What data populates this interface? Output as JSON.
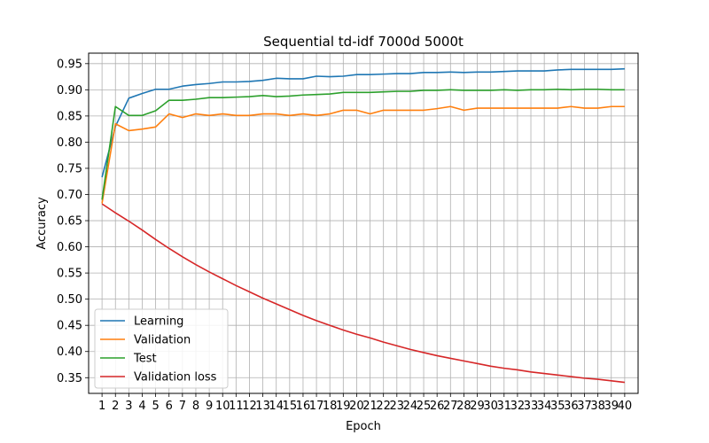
{
  "chart_data": {
    "type": "line",
    "title": "Sequential td-idf 7000d 5000t",
    "xlabel": "Epoch",
    "ylabel": "Accuracy",
    "x": [
      1,
      2,
      3,
      4,
      5,
      6,
      7,
      8,
      9,
      10,
      11,
      12,
      13,
      14,
      15,
      16,
      17,
      18,
      19,
      20,
      21,
      22,
      23,
      24,
      25,
      26,
      27,
      28,
      29,
      30,
      31,
      32,
      33,
      34,
      35,
      36,
      37,
      38,
      39,
      40
    ],
    "xticks": [
      "1",
      "2",
      "3",
      "4",
      "5",
      "6",
      "7",
      "8",
      "9",
      "10",
      "11",
      "12",
      "13",
      "14",
      "15",
      "16",
      "17",
      "18",
      "19",
      "20",
      "21",
      "22",
      "23",
      "24",
      "25",
      "26",
      "27",
      "28",
      "29",
      "30",
      "31",
      "32",
      "33",
      "34",
      "35",
      "36",
      "37",
      "38",
      "39",
      "40"
    ],
    "yticks": [
      "0.35",
      "0.40",
      "0.45",
      "0.50",
      "0.55",
      "0.60",
      "0.65",
      "0.70",
      "0.75",
      "0.80",
      "0.85",
      "0.90",
      "0.95"
    ],
    "ylim": [
      0.32,
      0.97
    ],
    "xlim": [
      0,
      41
    ],
    "grid": true,
    "legend_position": "lower-left",
    "series": [
      {
        "name": "Learning",
        "color": "#1f77b4",
        "values": [
          0.733,
          0.83,
          0.884,
          0.893,
          0.901,
          0.901,
          0.907,
          0.91,
          0.912,
          0.915,
          0.915,
          0.916,
          0.918,
          0.922,
          0.921,
          0.921,
          0.926,
          0.925,
          0.926,
          0.929,
          0.929,
          0.93,
          0.931,
          0.931,
          0.933,
          0.933,
          0.934,
          0.933,
          0.934,
          0.934,
          0.935,
          0.936,
          0.936,
          0.936,
          0.938,
          0.939,
          0.939,
          0.939,
          0.939,
          0.94
        ]
      },
      {
        "name": "Validation",
        "color": "#ff7f0e",
        "values": [
          0.683,
          0.835,
          0.822,
          0.825,
          0.829,
          0.854,
          0.847,
          0.854,
          0.851,
          0.854,
          0.851,
          0.851,
          0.854,
          0.854,
          0.851,
          0.854,
          0.851,
          0.854,
          0.861,
          0.861,
          0.854,
          0.861,
          0.861,
          0.861,
          0.861,
          0.864,
          0.868,
          0.861,
          0.865,
          0.865,
          0.865,
          0.865,
          0.865,
          0.865,
          0.865,
          0.868,
          0.865,
          0.865,
          0.868,
          0.868
        ]
      },
      {
        "name": "Test",
        "color": "#2ca02c",
        "values": [
          0.69,
          0.868,
          0.851,
          0.851,
          0.86,
          0.88,
          0.88,
          0.882,
          0.885,
          0.885,
          0.886,
          0.887,
          0.889,
          0.887,
          0.888,
          0.89,
          0.891,
          0.892,
          0.895,
          0.895,
          0.895,
          0.896,
          0.897,
          0.897,
          0.899,
          0.899,
          0.9,
          0.899,
          0.899,
          0.899,
          0.9,
          0.899,
          0.9,
          0.9,
          0.901,
          0.9,
          0.901,
          0.901,
          0.9,
          0.9
        ]
      },
      {
        "name": "Validation loss",
        "color": "#d62728",
        "values": [
          0.682,
          0.665,
          0.649,
          0.632,
          0.614,
          0.597,
          0.581,
          0.566,
          0.552,
          0.539,
          0.526,
          0.514,
          0.502,
          0.491,
          0.48,
          0.469,
          0.459,
          0.45,
          0.441,
          0.433,
          0.426,
          0.418,
          0.411,
          0.404,
          0.398,
          0.392,
          0.387,
          0.382,
          0.377,
          0.372,
          0.368,
          0.365,
          0.361,
          0.358,
          0.355,
          0.352,
          0.349,
          0.347,
          0.344,
          0.341
        ]
      }
    ]
  }
}
